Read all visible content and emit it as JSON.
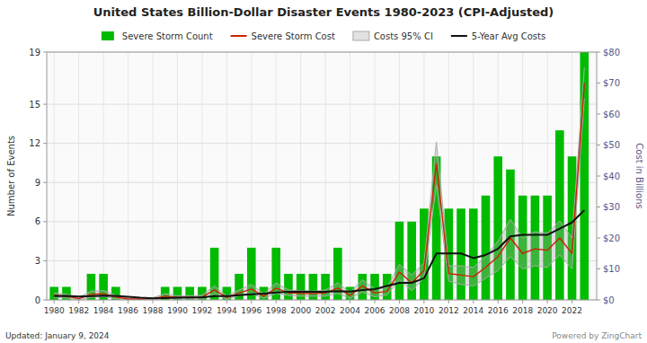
{
  "chart_data": {
    "type": "bar",
    "title": "United States Billion-Dollar Disaster Events 1980-2023 (CPI-Adjusted)",
    "x": [
      1980,
      1981,
      1982,
      1983,
      1984,
      1985,
      1986,
      1987,
      1988,
      1989,
      1990,
      1991,
      1992,
      1993,
      1994,
      1995,
      1996,
      1997,
      1998,
      1999,
      2000,
      2001,
      2002,
      2003,
      2004,
      2005,
      2006,
      2007,
      2008,
      2009,
      2010,
      2011,
      2012,
      2013,
      2014,
      2015,
      2016,
      2017,
      2018,
      2019,
      2020,
      2021,
      2022,
      2023
    ],
    "xlim": [
      1979.4,
      2024.0
    ],
    "xticks": [
      1980,
      1982,
      1984,
      1986,
      1988,
      1990,
      1992,
      1994,
      1996,
      1998,
      2000,
      2002,
      2004,
      2006,
      2008,
      2010,
      2012,
      2014,
      2016,
      2018,
      2020,
      2022
    ],
    "ylim": [
      0,
      19
    ],
    "yticks": [
      0,
      3,
      6,
      9,
      12,
      15,
      19
    ],
    "y2lim": [
      0,
      80
    ],
    "y2ticks": [
      {
        "value": 0,
        "label": "$0"
      },
      {
        "value": 10,
        "label": "$10"
      },
      {
        "value": 20,
        "label": "$20"
      },
      {
        "value": 30,
        "label": "$30"
      },
      {
        "value": 40,
        "label": "$40"
      },
      {
        "value": 50,
        "label": "$50"
      },
      {
        "value": 60,
        "label": "$60"
      },
      {
        "value": 70,
        "label": "$70"
      },
      {
        "value": 80,
        "label": "$80"
      }
    ],
    "ylabel": "Number of Events",
    "y2label": "Cost in Billions",
    "grid": true,
    "legend": "top",
    "series": [
      {
        "name": "Severe Storm Count",
        "type": "bar",
        "color": "#00bb00",
        "values": [
          1,
          1,
          0,
          2,
          2,
          1,
          0,
          0,
          0,
          1,
          1,
          1,
          1,
          4,
          1,
          2,
          4,
          1,
          4,
          2,
          2,
          2,
          2,
          4,
          1,
          2,
          2,
          2,
          6,
          6,
          7,
          11,
          7,
          7,
          7,
          8,
          11,
          10,
          8,
          8,
          8,
          13,
          11,
          19
        ]
      },
      {
        "name": "Severe Storm Cost",
        "type": "line",
        "axis": "y2",
        "color": "#cc2200",
        "values": [
          1.5,
          1.2,
          0.4,
          1.8,
          2.0,
          0.9,
          0.3,
          0.3,
          0.4,
          1.2,
          0.8,
          0.8,
          0.9,
          3.2,
          0.8,
          2.2,
          3.5,
          1.2,
          3.8,
          2.3,
          2.1,
          2.0,
          2.2,
          3.8,
          1.5,
          4.5,
          2.2,
          2.8,
          9.0,
          5.5,
          9.5,
          44.0,
          8.5,
          8.0,
          7.5,
          10.5,
          14.0,
          20.0,
          15.0,
          16.5,
          16.0,
          20.0,
          15.0,
          70.0
        ]
      },
      {
        "name": "Costs 95% CI",
        "type": "band",
        "axis": "y2",
        "color": "#aaaaaa",
        "upper": [
          2.2,
          1.8,
          0.8,
          2.8,
          3.0,
          1.5,
          0.6,
          0.6,
          0.7,
          2.0,
          1.3,
          1.3,
          1.5,
          4.5,
          1.3,
          3.2,
          5.0,
          2.0,
          5.5,
          3.2,
          3.0,
          2.8,
          3.2,
          5.5,
          2.5,
          6.5,
          3.5,
          4.0,
          11.5,
          8.0,
          12.0,
          51.0,
          11.0,
          11.0,
          10.5,
          14.0,
          19.0,
          26.0,
          20.0,
          22.0,
          21.5,
          25.5,
          20.0,
          75.0
        ],
        "lower": [
          0.8,
          0.6,
          0.1,
          0.8,
          1.0,
          0.4,
          0.1,
          0.1,
          0.1,
          0.5,
          0.3,
          0.3,
          0.3,
          2.0,
          0.3,
          1.3,
          2.0,
          0.5,
          2.1,
          1.4,
          1.2,
          1.2,
          1.2,
          2.1,
          0.5,
          2.5,
          1.0,
          1.6,
          6.5,
          3.0,
          7.0,
          37.0,
          6.0,
          5.0,
          4.5,
          7.0,
          9.5,
          14.0,
          10.0,
          11.0,
          10.5,
          14.5,
          10.0,
          65.0
        ]
      },
      {
        "name": "5-Year Avg Costs",
        "type": "line",
        "axis": "y2",
        "color": "#111111",
        "values": [
          1.2,
          1.3,
          1.1,
          1.2,
          1.4,
          1.3,
          1.0,
          0.7,
          0.5,
          0.6,
          0.7,
          0.8,
          0.8,
          1.2,
          1.2,
          1.5,
          1.8,
          2.0,
          2.4,
          2.6,
          2.7,
          2.6,
          2.6,
          2.8,
          2.7,
          3.2,
          3.5,
          4.5,
          5.5,
          5.5,
          7.0,
          15.0,
          15.0,
          15.0,
          13.5,
          14.5,
          16.5,
          20.5,
          21.0,
          21.0,
          21.0,
          23.0,
          25.0,
          29.0
        ]
      }
    ],
    "footnote": "Updated: January 9, 2024",
    "watermark": "Powered by ZingChart"
  }
}
